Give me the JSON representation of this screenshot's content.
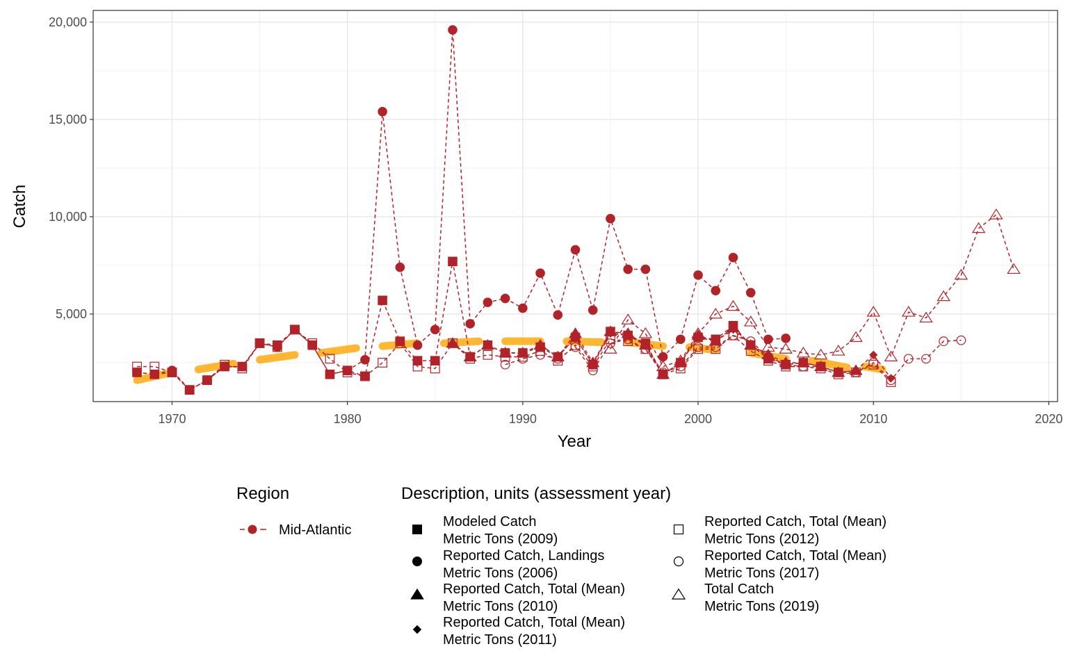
{
  "chart_data": {
    "type": "line",
    "xlabel": "Year",
    "ylabel": "Catch",
    "xlim": [
      1965.5,
      2020.5
    ],
    "ylim": [
      500,
      20600
    ],
    "x_ticks": [
      1970,
      1980,
      1990,
      2000,
      2010,
      2020
    ],
    "y_ticks": [
      5000,
      10000,
      15000,
      20000
    ],
    "x_tick_labels": [
      "1970",
      "1980",
      "1990",
      "2000",
      "2010",
      "2020"
    ],
    "y_tick_labels": [
      "5,000",
      "10,000",
      "15,000",
      "20,000"
    ],
    "grid": true,
    "legend_position": "bottom",
    "colors": {
      "series": "#b22329",
      "trend": "#ffa500"
    },
    "legend": {
      "region_title": "Region",
      "region_items": [
        {
          "label": "Mid-Atlantic"
        }
      ],
      "description_title": "Description, units (assessment year)",
      "description_items": [
        {
          "shape": "square",
          "line1": "Modeled Catch",
          "line2": "Metric Tons (2009)"
        },
        {
          "shape": "circle",
          "line1": "Reported Catch, Landings",
          "line2": "Metric Tons (2006)"
        },
        {
          "shape": "triangle",
          "line1": "Reported Catch, Total (Mean)",
          "line2": "Metric Tons (2010)"
        },
        {
          "shape": "diamond",
          "line1": "Reported Catch, Total (Mean)",
          "line2": "Metric Tons (2011)"
        },
        {
          "shape": "square-open",
          "line1": "Reported Catch, Total (Mean)",
          "line2": "Metric Tons (2012)"
        },
        {
          "shape": "circle-open",
          "line1": "Reported Catch, Total (Mean)",
          "line2": "Metric Tons (2017)"
        },
        {
          "shape": "triangle-open",
          "line1": "Total Catch",
          "line2": "Metric Tons (2019)"
        }
      ]
    },
    "series": [
      {
        "region": "Mid-Atlantic",
        "shape": "square",
        "x": [
          1968,
          1969,
          1970,
          1971,
          1972,
          1973,
          1974,
          1975,
          1976,
          1977,
          1978,
          1979,
          1980,
          1981,
          1982,
          1983,
          1984,
          1985,
          1986,
          1987,
          1988,
          1989,
          1990,
          1991,
          1992,
          1993,
          1994,
          1995,
          1996,
          1997,
          1998,
          1999,
          2000,
          2001,
          2002,
          2003,
          2004,
          2005,
          2006,
          2007,
          2008
        ],
        "y": [
          2000,
          1900,
          2000,
          1100,
          1600,
          2300,
          2300,
          3500,
          3400,
          4200,
          3400,
          1900,
          2100,
          1800,
          5700,
          3600,
          2600,
          2600,
          7700,
          2800,
          3400,
          3000,
          3000,
          3300,
          2800,
          3800,
          2400,
          4100,
          3900,
          3500,
          1900,
          2500,
          3800,
          3700,
          4400,
          3400,
          2700,
          2400,
          2500,
          2300,
          2000
        ]
      },
      {
        "region": "Mid-Atlantic",
        "shape": "circle",
        "x": [
          1968,
          1969,
          1970,
          1971,
          1972,
          1973,
          1974,
          1975,
          1976,
          1977,
          1978,
          1979,
          1980,
          1981,
          1982,
          1983,
          1984,
          1985,
          1986,
          1987,
          1988,
          1989,
          1990,
          1991,
          1992,
          1993,
          1994,
          1995,
          1996,
          1997,
          1998,
          1999,
          2000,
          2001,
          2002,
          2003,
          2004,
          2005
        ],
        "y": [
          2000,
          1900,
          2100,
          1100,
          1600,
          2300,
          2300,
          3500,
          3300,
          4200,
          3400,
          1900,
          2100,
          2650,
          15400,
          7400,
          3400,
          4200,
          19600,
          4500,
          5600,
          5800,
          5300,
          7100,
          4950,
          8300,
          5200,
          9900,
          7300,
          7300,
          2800,
          3700,
          7000,
          6200,
          7900,
          6100,
          3700,
          3750
        ]
      },
      {
        "region": "Mid-Atlantic",
        "shape": "triangle",
        "x": [
          1986,
          1987,
          1988,
          1989,
          1990,
          1991,
          1992,
          1993,
          1994,
          1995,
          1996,
          1997,
          1998,
          1999,
          2000,
          2001,
          2002,
          2003,
          2004,
          2005,
          2006,
          2007,
          2008,
          2009
        ],
        "y": [
          3500,
          2800,
          3400,
          3000,
          3000,
          3400,
          2800,
          4000,
          2500,
          4100,
          4000,
          3400,
          1900,
          2500,
          3900,
          3600,
          4300,
          3400,
          2900,
          2500,
          2500,
          2300,
          2000,
          2100
        ]
      },
      {
        "region": "Mid-Atlantic",
        "shape": "diamond",
        "x": [
          1986,
          1987,
          1988,
          1989,
          1990,
          1991,
          1992,
          1993,
          1994,
          1995,
          1996,
          1997,
          1998,
          1999,
          2000,
          2001,
          2002,
          2003,
          2004,
          2005,
          2006,
          2007,
          2008,
          2009,
          2010,
          2011
        ],
        "y": [
          3500,
          2800,
          3400,
          3000,
          3000,
          3400,
          2800,
          3800,
          2400,
          4000,
          3900,
          3400,
          1900,
          2500,
          3800,
          3600,
          4200,
          3400,
          2800,
          2400,
          2500,
          2300,
          2000,
          2100,
          2900,
          1700
        ]
      },
      {
        "region": "Mid-Atlantic",
        "shape": "square-open",
        "x": [
          1968,
          1969,
          1970,
          1971,
          1972,
          1973,
          1974,
          1975,
          1976,
          1977,
          1978,
          1979,
          1980,
          1981,
          1982,
          1983,
          1984,
          1985,
          1986,
          1987,
          1988,
          1989,
          1990,
          1991,
          1992,
          1993,
          1994,
          1995,
          1996,
          1997,
          1998,
          1999,
          2000,
          2001,
          2002,
          2003,
          2004,
          2005,
          2006,
          2007,
          2008,
          2009,
          2010,
          2011
        ],
        "y": [
          2300,
          2300,
          2000,
          1100,
          1600,
          2400,
          2200,
          3500,
          3300,
          4200,
          3500,
          2700,
          2000,
          1800,
          2500,
          3500,
          2300,
          2200,
          3500,
          2700,
          2900,
          2800,
          2800,
          3100,
          2600,
          3400,
          2300,
          3700,
          3600,
          3200,
          1900,
          2200,
          3200,
          3200,
          3900,
          3100,
          2600,
          2300,
          2300,
          2200,
          1900,
          2000,
          2400,
          1500
        ]
      },
      {
        "region": "Mid-Atlantic",
        "shape": "circle-open",
        "x": [
          1989,
          1990,
          1991,
          1992,
          1993,
          1994,
          1995,
          1996,
          1997,
          1998,
          1999,
          2000,
          2001,
          2002,
          2003,
          2004,
          2005,
          2006,
          2007,
          2008,
          2009,
          2010,
          2011,
          2012,
          2013,
          2014,
          2015
        ],
        "y": [
          2400,
          2700,
          2900,
          2700,
          3300,
          2100,
          3500,
          3700,
          3200,
          2000,
          2300,
          3300,
          3300,
          3900,
          3600,
          2800,
          2400,
          2300,
          2300,
          2000,
          2000,
          2500,
          1600,
          2700,
          2700,
          3600,
          3650
        ]
      },
      {
        "region": "Mid-Atlantic",
        "shape": "triangle-open",
        "x": [
          1995,
          1996,
          1997,
          1998,
          1999,
          2000,
          2001,
          2002,
          2003,
          2004,
          2005,
          2006,
          2007,
          2008,
          2009,
          2010,
          2011,
          2012,
          2013,
          2014,
          2015,
          2016,
          2017,
          2018
        ],
        "y": [
          3200,
          4700,
          4000,
          2300,
          2600,
          4000,
          5000,
          5400,
          4600,
          3300,
          3200,
          3000,
          2900,
          3100,
          3800,
          5100,
          2800,
          5100,
          4800,
          5900,
          7000,
          9400,
          10100,
          7300
        ]
      }
    ],
    "trend_segments": [
      {
        "x": [
          1968,
          1970
        ],
        "y": [
          1600,
          2000
        ]
      },
      {
        "x": [
          1971.5,
          1973.5
        ],
        "y": [
          2150,
          2450
        ]
      },
      {
        "x": [
          1975,
          1977
        ],
        "y": [
          2650,
          2900
        ]
      },
      {
        "x": [
          1978.5,
          1980.5
        ],
        "y": [
          3000,
          3250
        ]
      },
      {
        "x": [
          1982,
          1984
        ],
        "y": [
          3350,
          3500
        ]
      },
      {
        "x": [
          1985.5,
          1987.5
        ],
        "y": [
          3500,
          3600
        ]
      },
      {
        "x": [
          1989,
          1991
        ],
        "y": [
          3600,
          3600
        ]
      },
      {
        "x": [
          1992.5,
          1994.5
        ],
        "y": [
          3600,
          3550
        ]
      },
      {
        "x": [
          1996,
          1998
        ],
        "y": [
          3550,
          3350
        ]
      },
      {
        "x": [
          1999.5,
          2001
        ],
        "y": [
          3300,
          3150
        ]
      },
      {
        "x": [
          2003,
          2005
        ],
        "y": [
          3000,
          2700
        ]
      },
      {
        "x": [
          2006.5,
          2008.5
        ],
        "y": [
          2600,
          2250
        ]
      },
      {
        "x": [
          2009.5,
          2010.5
        ],
        "y": [
          2300,
          2150
        ]
      }
    ]
  }
}
